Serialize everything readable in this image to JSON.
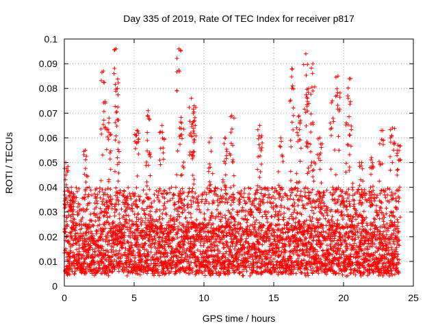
{
  "chart_data": {
    "type": "scatter",
    "title": "Day 335 of 2019, Rate Of TEC Index for receiver p817",
    "xlabel": "GPS time / hours",
    "ylabel": "ROTI / TECUs",
    "xlim": [
      0,
      25
    ],
    "ylim": [
      0,
      0.1
    ],
    "x_ticks": [
      0,
      5,
      10,
      15,
      20,
      25
    ],
    "x_tick_labels": [
      "0",
      "5",
      "10",
      "15",
      "20",
      "25"
    ],
    "y_ticks": [
      0,
      0.01,
      0.02,
      0.03,
      0.04,
      0.05,
      0.06,
      0.07,
      0.08,
      0.09,
      0.1
    ],
    "y_tick_labels": [
      "0",
      "0.01",
      "0.02",
      "0.03",
      "0.04",
      "0.05",
      "0.06",
      "0.07",
      "0.08",
      "0.09",
      "0.1"
    ],
    "grid": true,
    "marker": "+",
    "marker_color": "#ff0000",
    "series": [
      {
        "name": "ROTI",
        "x_range": [
          0,
          24
        ],
        "typical_range": [
          0.005,
          0.025
        ],
        "peaks": [
          {
            "x": 0.1,
            "y": 0.05
          },
          {
            "x": 0.5,
            "y": 0.04
          },
          {
            "x": 1.5,
            "y": 0.055
          },
          {
            "x": 2.8,
            "y": 0.087
          },
          {
            "x": 3.2,
            "y": 0.068
          },
          {
            "x": 3.7,
            "y": 0.096
          },
          {
            "x": 3.8,
            "y": 0.08
          },
          {
            "x": 5.2,
            "y": 0.063
          },
          {
            "x": 6.0,
            "y": 0.071
          },
          {
            "x": 7.0,
            "y": 0.065
          },
          {
            "x": 8.2,
            "y": 0.096
          },
          {
            "x": 8.4,
            "y": 0.066
          },
          {
            "x": 9.1,
            "y": 0.076
          },
          {
            "x": 9.3,
            "y": 0.073
          },
          {
            "x": 10.5,
            "y": 0.06
          },
          {
            "x": 11.5,
            "y": 0.06
          },
          {
            "x": 12.0,
            "y": 0.069
          },
          {
            "x": 14.0,
            "y": 0.065
          },
          {
            "x": 15.5,
            "y": 0.06
          },
          {
            "x": 16.3,
            "y": 0.088
          },
          {
            "x": 16.8,
            "y": 0.069
          },
          {
            "x": 17.3,
            "y": 0.094
          },
          {
            "x": 17.5,
            "y": 0.08
          },
          {
            "x": 17.8,
            "y": 0.09
          },
          {
            "x": 18.3,
            "y": 0.06
          },
          {
            "x": 19.2,
            "y": 0.075
          },
          {
            "x": 19.6,
            "y": 0.085
          },
          {
            "x": 20.5,
            "y": 0.084
          },
          {
            "x": 20.3,
            "y": 0.077
          },
          {
            "x": 21.3,
            "y": 0.05
          },
          {
            "x": 22.0,
            "y": 0.052
          },
          {
            "x": 22.7,
            "y": 0.063
          },
          {
            "x": 23.5,
            "y": 0.064
          },
          {
            "x": 23.9,
            "y": 0.057
          }
        ]
      }
    ]
  }
}
